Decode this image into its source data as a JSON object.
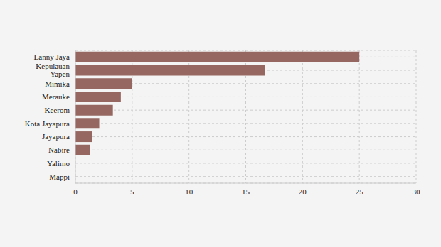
{
  "chart_data": {
    "type": "bar",
    "orientation": "horizontal",
    "categories": [
      "Lanny Jaya",
      "Kepulauan Yapen",
      "Mimika",
      "Merauke",
      "Keerom",
      "Kota Jayapura",
      "Jayapura",
      "Nabire",
      "Yalimo",
      "Mappi"
    ],
    "values": [
      25,
      16.7,
      5,
      4,
      3.3,
      2.1,
      1.5,
      1.3,
      0,
      0
    ],
    "color": "#956760",
    "xlim": [
      0,
      30
    ],
    "xticks": [
      0,
      5,
      10,
      15,
      20,
      25,
      30
    ],
    "grid": true
  }
}
